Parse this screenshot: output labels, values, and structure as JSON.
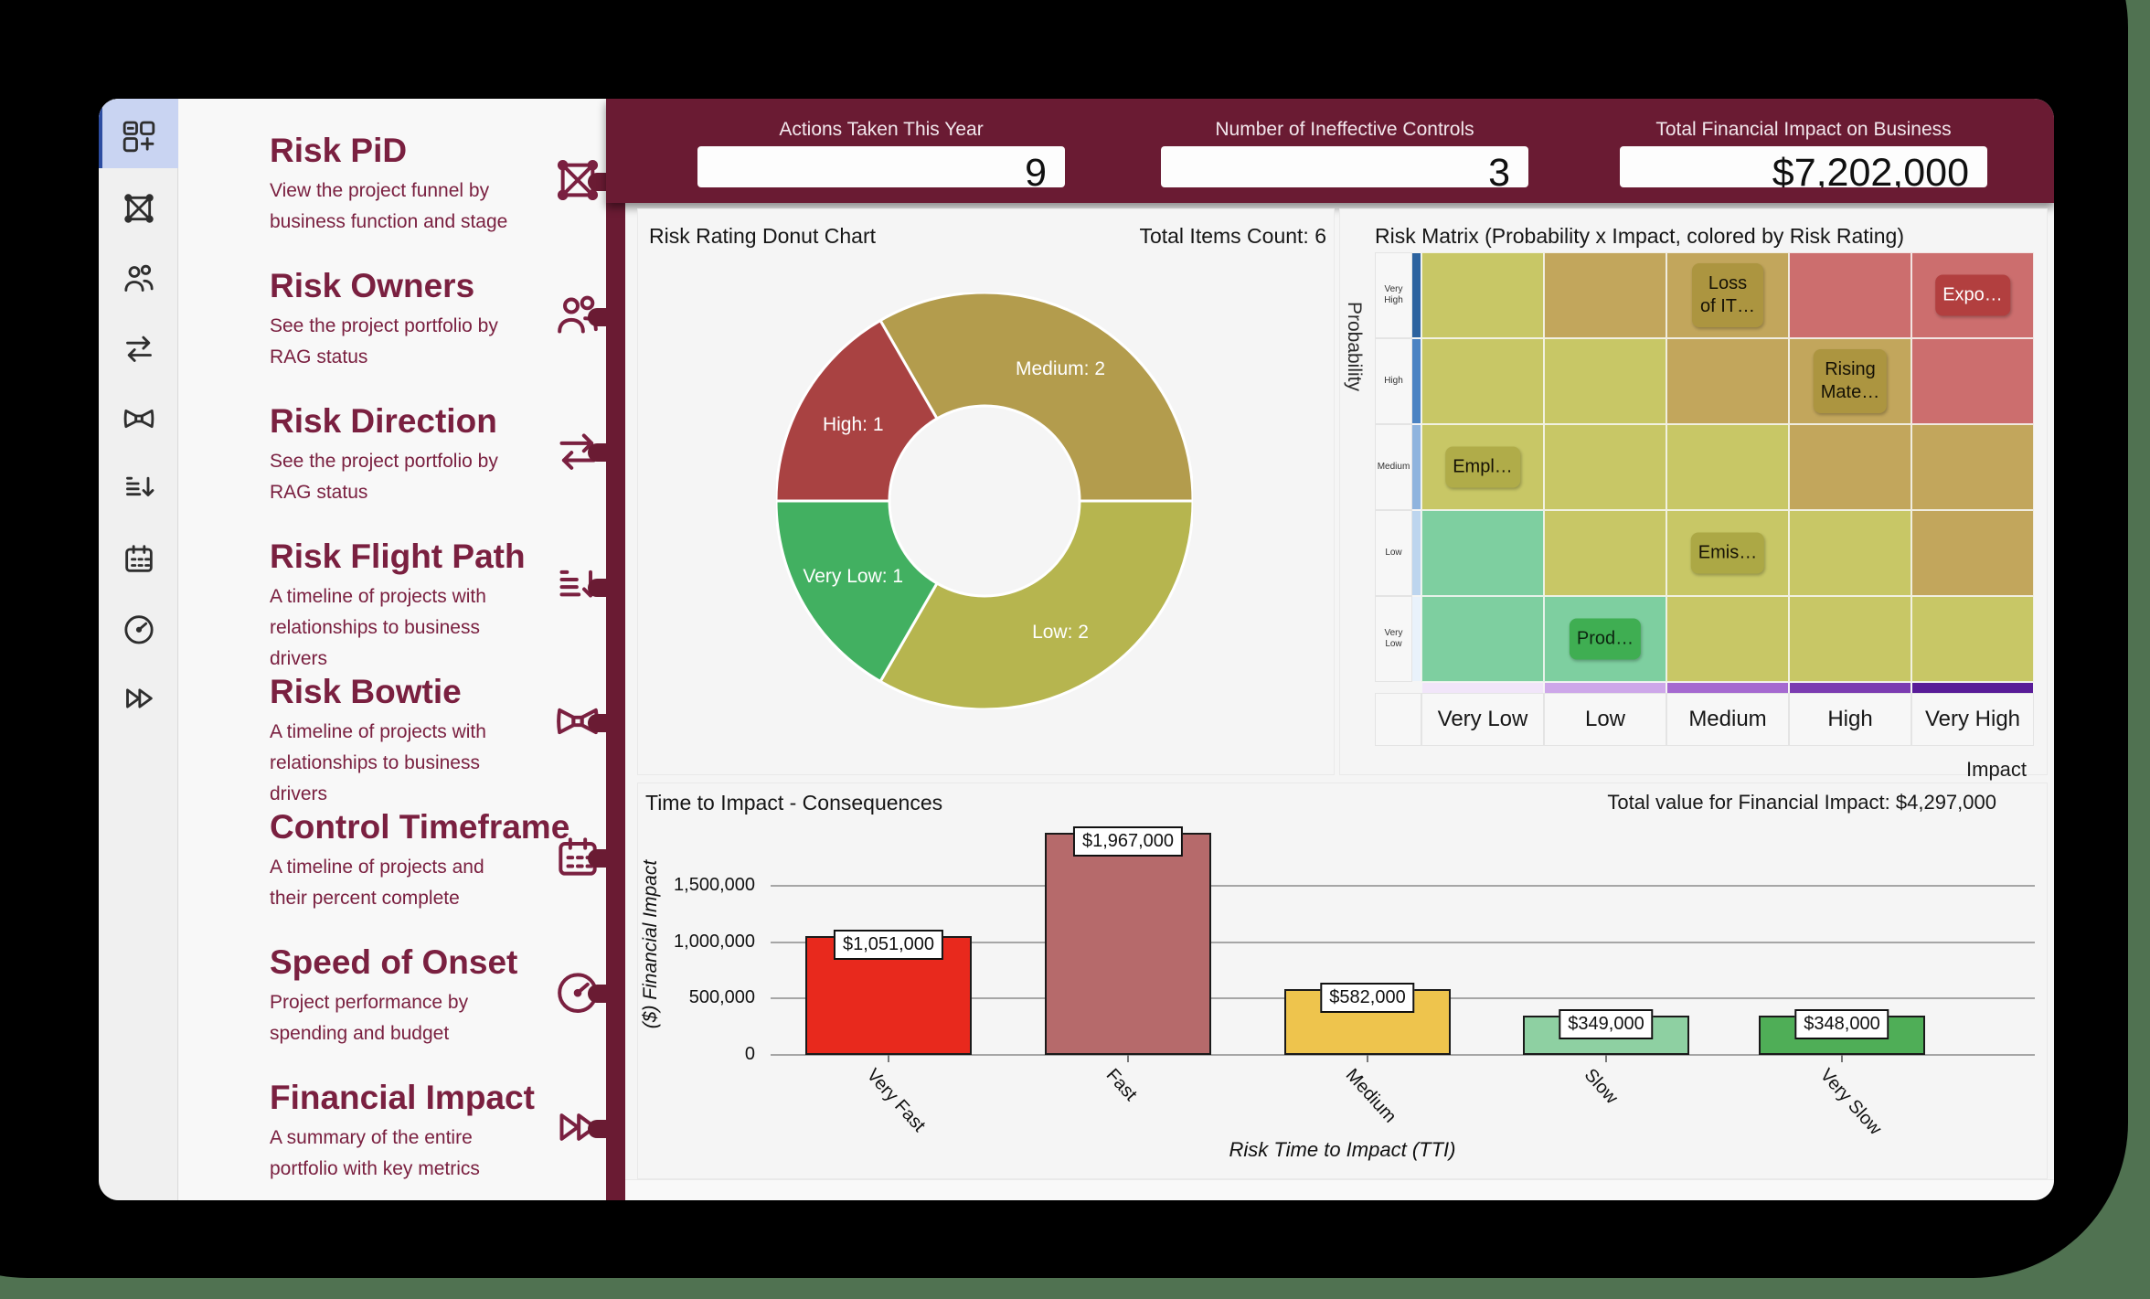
{
  "colors": {
    "maroon": "#6a1b33",
    "sidebar_text": "#7a2040",
    "rail_selected_bg": "#c9d4f2",
    "rail_selected_bar": "#2d4da1",
    "cell_low": "#c8c766",
    "cell_medium": "#c2a65c",
    "cell_high": "#cc6e6e",
    "cell_green": "#7ecfa0"
  },
  "sidebar": {
    "rail_icons": [
      {
        "name": "grid-plus-icon",
        "selected": true
      },
      {
        "name": "box-x-icon",
        "selected": false
      },
      {
        "name": "people-icon",
        "selected": false
      },
      {
        "name": "swap-icon",
        "selected": false
      },
      {
        "name": "bowtie-icon",
        "selected": false
      },
      {
        "name": "list-down-icon",
        "selected": false
      },
      {
        "name": "calendar-icon",
        "selected": false
      },
      {
        "name": "gauge-icon",
        "selected": false
      },
      {
        "name": "fast-forward-icon",
        "selected": false
      }
    ],
    "items": [
      {
        "title": "Risk PiD",
        "description": "View the project funnel by business function and stage",
        "icon": "box-x-icon"
      },
      {
        "title": "Risk Owners",
        "description": "See the project portfolio by RAG status",
        "icon": "people-icon"
      },
      {
        "title": "Risk Direction",
        "description": "See the project portfolio by RAG status",
        "icon": "swap-icon"
      },
      {
        "title": "Risk Flight Path",
        "description": "A timeline of projects with relationships to business drivers",
        "icon": "list-down-icon"
      },
      {
        "title": "Risk Bowtie",
        "description": "A timeline of projects with relationships to business drivers",
        "icon": "bowtie-icon"
      },
      {
        "title": "Control Timeframe",
        "description": "A timeline of projects and their percent complete",
        "icon": "calendar-icon"
      },
      {
        "title": "Speed of Onset",
        "description": "Project performance by spending and budget",
        "icon": "gauge-icon"
      },
      {
        "title": "Financial Impact",
        "description": "A summary of the entire portfolio with key metrics",
        "icon": "fast-forward-icon"
      }
    ]
  },
  "header": {
    "kpis": [
      {
        "label": "Actions Taken This Year",
        "value": "9"
      },
      {
        "label": "Number of Ineffective Controls",
        "value": "3"
      },
      {
        "label": "Total Financial Impact on Business",
        "value": "$7,202,000"
      }
    ]
  },
  "donut": {
    "title": "Risk Rating Donut Chart",
    "total_text": "Total Items Count: 6",
    "type": "donut",
    "start_angle_deg": -30,
    "segments": [
      {
        "label": "Medium: 2",
        "name": "Medium",
        "value": 2,
        "color": "#b39c4d"
      },
      {
        "label": "Low: 2",
        "name": "Low",
        "value": 2,
        "color": "#b6b54f"
      },
      {
        "label": "Very Low: 1",
        "name": "Very Low",
        "value": 1,
        "color": "#42b061"
      },
      {
        "label": "High: 1",
        "name": "High",
        "value": 1,
        "color": "#a94242"
      }
    ]
  },
  "matrix": {
    "title": "Risk Matrix (Probability x Impact, colored by Risk Rating)",
    "y_axis_label": "Probability",
    "x_axis_label": "Impact",
    "row_labels": [
      "Very High",
      "High",
      "Medium",
      "Low",
      "Very Low"
    ],
    "col_labels": [
      "Very Low",
      "Low",
      "Medium",
      "High",
      "Very High"
    ],
    "row_strip_colors": [
      "#2d639f",
      "#4b83c3",
      "#8fb4de",
      "#bdd5ee",
      "#e9f2fb"
    ],
    "col_strip_colors": [
      "#f1e5f9",
      "#cda7e9",
      "#a569d0",
      "#7b3cb1",
      "#591c98"
    ],
    "cells": [
      [
        "low",
        "medium",
        "medium",
        "high",
        "high"
      ],
      [
        "low",
        "low",
        "medium",
        "medium",
        "high"
      ],
      [
        "low",
        "low",
        "low",
        "medium",
        "medium"
      ],
      [
        "green",
        "low",
        "low",
        "low",
        "medium"
      ],
      [
        "green",
        "green",
        "low",
        "low",
        "low"
      ]
    ],
    "tags": [
      {
        "row": 0,
        "col": 2,
        "lines": [
          "Loss",
          "of IT…"
        ],
        "bg": "#ac9540",
        "color": "#151105"
      },
      {
        "row": 0,
        "col": 4,
        "lines": [
          "Expo…"
        ],
        "bg": "#b23f3f",
        "color": "#ffffff"
      },
      {
        "row": 1,
        "col": 3,
        "lines": [
          "Rising",
          "Mate…"
        ],
        "bg": "#ac9540",
        "color": "#151105"
      },
      {
        "row": 2,
        "col": 0,
        "lines": [
          "Empl…"
        ],
        "bg": "#b0ac49",
        "color": "#151105"
      },
      {
        "row": 3,
        "col": 2,
        "lines": [
          "Emis…"
        ],
        "bg": "#aca845",
        "color": "#151105"
      },
      {
        "row": 4,
        "col": 1,
        "lines": [
          "Prod…"
        ],
        "bg": "#3fae52",
        "color": "#0c2410"
      }
    ]
  },
  "bar_chart": {
    "title": "Time to Impact - Consequences",
    "total_text": "Total value for Financial Impact: $4,297,000",
    "ylabel": "($) Financial Impact",
    "xlabel": "Risk Time to Impact (TTI)",
    "type": "bar",
    "yticks": [
      {
        "value": 0,
        "label": "0"
      },
      {
        "value": 500000,
        "label": "500,000"
      },
      {
        "value": 1000000,
        "label": "1,000,000"
      },
      {
        "value": 1500000,
        "label": "1,500,000"
      }
    ],
    "bars": [
      {
        "category": "Very Fast",
        "value": 1051000,
        "label": "$1,051,000",
        "color": "#e8291d"
      },
      {
        "category": "Fast",
        "value": 1967000,
        "label": "$1,967,000",
        "color": "#b66a6b"
      },
      {
        "category": "Medium",
        "value": 582000,
        "label": "$582,000",
        "color": "#eec44d"
      },
      {
        "category": "Slow",
        "value": 349000,
        "label": "$349,000",
        "color": "#8ed0a2"
      },
      {
        "category": "Very Slow",
        "value": 348000,
        "label": "$348,000",
        "color": "#4fae57"
      }
    ]
  }
}
